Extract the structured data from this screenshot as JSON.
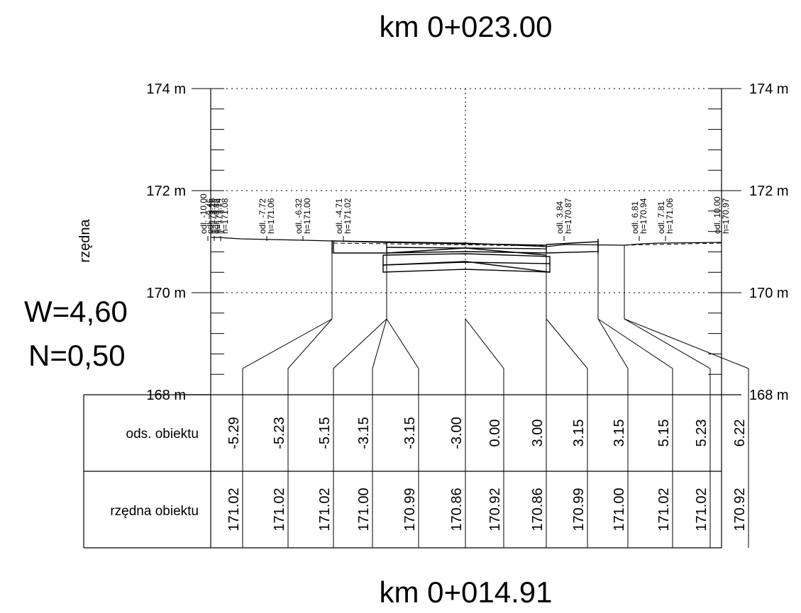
{
  "titles": {
    "top": "km 0+023.00",
    "bottom": "km 0+014.91"
  },
  "params": {
    "w": "W=4,60",
    "n": "N=0,50"
  },
  "axis": {
    "label": "rzędna",
    "levels": [
      "174 m",
      "172 m",
      "170 m",
      "168 m"
    ]
  },
  "table": {
    "row_labels": [
      "ods. obiektu",
      "rzędna obiektu"
    ],
    "offsets": [
      "-5.29",
      "-5.23",
      "-5.15",
      "-3.15",
      "-3.15",
      "-3.00",
      "0.00",
      "3.00",
      "3.15",
      "3.15",
      "5.15",
      "5.23",
      "6.22"
    ],
    "elevations": [
      "171.02",
      "171.02",
      "171.02",
      "171.00",
      "170.99",
      "170.86",
      "170.92",
      "170.86",
      "170.99",
      "171.00",
      "171.02",
      "171.02",
      "170.92"
    ]
  },
  "terrain_labels": [
    {
      "odl": "odl. -10.00",
      "h": "h=171.16"
    },
    {
      "odl": "odl. -9.45",
      "h": "h=171.14"
    },
    {
      "odl": "odl. -8.88",
      "h": "h=171.08"
    },
    {
      "odl": "odl. -7.72",
      "h": "h=171.06"
    },
    {
      "odl": "odl. -6.32",
      "h": "h=171.00"
    },
    {
      "odl": "odl. -4.71",
      "h": "h=171.02"
    },
    {
      "odl": "odl. 3.84",
      "h": "h=170.87"
    },
    {
      "odl": "odl. 6.81",
      "h": "h=170.94"
    },
    {
      "odl": "odl. 7.81",
      "h": "h=171.06"
    },
    {
      "odl": "odl. 10.00",
      "h": "h=170.97"
    }
  ]
}
